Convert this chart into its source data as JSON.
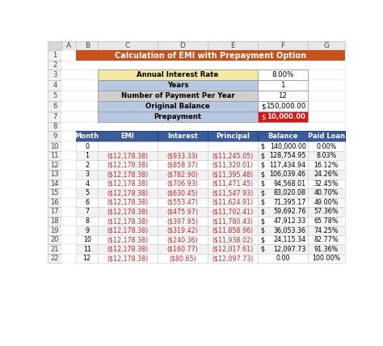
{
  "title": "Calculation of EMI with Prepayment Option",
  "title_bg": "#C8501A",
  "title_color": "white",
  "col_header_bg": "#3A5A9A",
  "col_header_color": "white",
  "spreadsheet_col_labels": [
    "A",
    "B",
    "C",
    "D",
    "E",
    "F",
    "G"
  ],
  "col_headers": [
    "Month",
    "EMI",
    "Interest",
    "Principal",
    "Balance",
    "Paid Loan"
  ],
  "input_labels": [
    "Annual Interest Rate",
    "Years",
    "Number of Payment Per Year",
    "Original Balance",
    "Prepayment"
  ],
  "input_label_bgs": [
    "#F5E8A0",
    "#B8C8E0",
    "#D0D0D0",
    "#B8C8E0",
    "#B8C8E0"
  ],
  "input_values_plain": [
    "8.00%",
    "1",
    "12",
    "150,000.00",
    "10,000.00"
  ],
  "input_values_has_dollar": [
    false,
    false,
    false,
    true,
    true
  ],
  "input_value_bgs": [
    "white",
    "white",
    "white",
    "white",
    "#DD1111"
  ],
  "input_value_colors": [
    "black",
    "black",
    "black",
    "black",
    "white"
  ],
  "months": [
    "0",
    "1",
    "2",
    "3",
    "4",
    "5",
    "6",
    "7",
    "8",
    "9",
    "10",
    "11",
    "12"
  ],
  "emi": [
    "",
    "($12,178.38)",
    "($12,178.38)",
    "($12,178.38)",
    "($12,178.38)",
    "($12,178.38)",
    "($12,178.38)",
    "($12,178.38)",
    "($12,178.38)",
    "($12,178.38)",
    "($12,178.38)",
    "($12,178.38)",
    "($12,178.38)"
  ],
  "interest": [
    "",
    "($933.33)",
    "($858.37)",
    "($782.90)",
    "($706.93)",
    "($630.45)",
    "($553.47)",
    "($475.97)",
    "($397.95)",
    "($319.42)",
    "($240.36)",
    "($160.77)",
    "($80.65)"
  ],
  "principal": [
    "",
    "($11,245.05)",
    "($11,320.01)",
    "($11,395.48)",
    "($11,471.45)",
    "($11,547.93)",
    "($11,624.91)",
    "($11,702.41)",
    "($11,780.43)",
    "($11,858.96)",
    "($11,938.02)",
    "($12,017.61)",
    "($12,097.73)"
  ],
  "balance_num": [
    "140,000.00",
    "128,754.95",
    "117,434.94",
    "106,039.46",
    "94,568.01",
    "83,020.08",
    "71,395.17",
    "59,692.76",
    "47,912.33",
    "36,053.36",
    "24,115.34",
    "12,097.73",
    "0.00"
  ],
  "balance_has_dollar": [
    true,
    true,
    true,
    true,
    true,
    true,
    true,
    true,
    true,
    true,
    true,
    true,
    false
  ],
  "paid_loan": [
    "0.00%",
    "8.03%",
    "16.12%",
    "24.26%",
    "32.45%",
    "40.70%",
    "49.00%",
    "57.36%",
    "65.78%",
    "74.25%",
    "82.77%",
    "91.36%",
    "100.00%"
  ],
  "red_text_color": "#CC2222",
  "row_even_bg": "#FFFFFF",
  "row_odd_bg": "#F2F2F2",
  "border_dark": "#2E4D8A",
  "border_light": "#AAAAAA",
  "header_row_bg": "#E8E8E8",
  "row_num_bg": "#F0F0F0",
  "col_letter_bg": "#E8E8E8",
  "corner_bg": "#D8D8D8",
  "figure_bg": "#FFFFFF",
  "row_num_color": "#444444"
}
